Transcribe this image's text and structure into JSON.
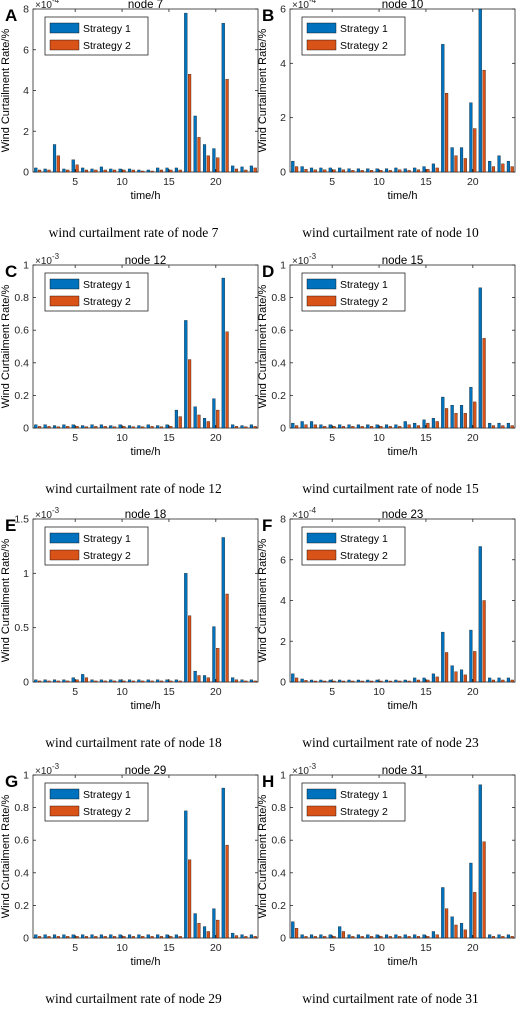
{
  "series_names": [
    "Strategy 1",
    "Strategy 2"
  ],
  "colors": {
    "s1": "#0072BD",
    "s2": "#D95319",
    "axis": "#262626"
  },
  "ylabel": "Wind Curtailment Rate/%",
  "xlabel": "time/h",
  "xticks": [
    5,
    10,
    15,
    20
  ],
  "chart_data": [
    {
      "type": "bar",
      "panel_letter": "A",
      "title": "node 7",
      "caption": "wind curtailment rate of node 7",
      "exponent": "×10^-4",
      "x": [
        1,
        2,
        3,
        4,
        5,
        6,
        7,
        8,
        9,
        10,
        11,
        12,
        13,
        14,
        15,
        16,
        17,
        18,
        19,
        20,
        21,
        22,
        23,
        24
      ],
      "xlim": [
        0.5,
        24.5
      ],
      "ylim": [
        0,
        8
      ],
      "ytick_labels": [
        "0",
        "2",
        "4",
        "6",
        "8"
      ],
      "series": [
        {
          "name": "Strategy 1",
          "values": [
            0.2,
            0.15,
            1.35,
            0.15,
            0.6,
            0.2,
            0.15,
            0.25,
            0.15,
            0.15,
            0.15,
            0.1,
            0.1,
            0.2,
            0.2,
            0.2,
            7.8,
            2.75,
            1.35,
            1.15,
            7.3,
            0.3,
            0.25,
            0.3
          ]
        },
        {
          "name": "Strategy 2",
          "values": [
            0.1,
            0.1,
            0.8,
            0.1,
            0.35,
            0.1,
            0.1,
            0.1,
            0.1,
            0.1,
            0.1,
            0.05,
            0.05,
            0.1,
            0.1,
            0.1,
            4.8,
            1.7,
            0.8,
            0.7,
            4.55,
            0.15,
            0.1,
            0.2
          ]
        }
      ]
    },
    {
      "type": "bar",
      "panel_letter": "B",
      "title": "node 10",
      "caption": "wind curtailment rate of node 10",
      "exponent": "×10^-4",
      "x": [
        1,
        2,
        3,
        4,
        5,
        6,
        7,
        8,
        9,
        10,
        11,
        12,
        13,
        14,
        15,
        16,
        17,
        18,
        19,
        20,
        21,
        22,
        23,
        24
      ],
      "xlim": [
        0.5,
        24.5
      ],
      "ylim": [
        0,
        6
      ],
      "ytick_labels": [
        "0",
        "2",
        "4",
        "6"
      ],
      "series": [
        {
          "name": "Strategy 1",
          "values": [
            0.4,
            0.2,
            0.15,
            0.15,
            0.15,
            0.15,
            0.12,
            0.12,
            0.12,
            0.12,
            0.12,
            0.15,
            0.12,
            0.15,
            0.2,
            0.3,
            4.7,
            0.9,
            0.9,
            2.55,
            6.0,
            0.4,
            0.6,
            0.4
          ]
        },
        {
          "name": "Strategy 2",
          "values": [
            0.2,
            0.1,
            0.08,
            0.08,
            0.08,
            0.08,
            0.06,
            0.06,
            0.06,
            0.06,
            0.06,
            0.08,
            0.06,
            0.08,
            0.1,
            0.15,
            2.9,
            0.6,
            0.5,
            1.6,
            3.75,
            0.2,
            0.3,
            0.2
          ]
        }
      ]
    },
    {
      "type": "bar",
      "panel_letter": "C",
      "title": "node 12",
      "caption": "wind curtailment rate of node 12",
      "exponent": "×10^-3",
      "x": [
        1,
        2,
        3,
        4,
        5,
        6,
        7,
        8,
        9,
        10,
        11,
        12,
        13,
        14,
        15,
        16,
        17,
        18,
        19,
        20,
        21,
        22,
        23,
        24
      ],
      "xlim": [
        0.5,
        24.5
      ],
      "ylim": [
        0,
        1
      ],
      "ytick_labels": [
        "0",
        "0.2",
        "0.4",
        "0.6",
        "0.8",
        "1"
      ],
      "series": [
        {
          "name": "Strategy 1",
          "values": [
            0.02,
            0.02,
            0.015,
            0.02,
            0.02,
            0.015,
            0.02,
            0.02,
            0.015,
            0.02,
            0.015,
            0.015,
            0.02,
            0.015,
            0.02,
            0.11,
            0.66,
            0.13,
            0.06,
            0.18,
            0.92,
            0.02,
            0.015,
            0.02
          ]
        },
        {
          "name": "Strategy 2",
          "values": [
            0.01,
            0.01,
            0.008,
            0.01,
            0.01,
            0.008,
            0.01,
            0.01,
            0.008,
            0.01,
            0.008,
            0.008,
            0.01,
            0.008,
            0.01,
            0.07,
            0.42,
            0.08,
            0.04,
            0.11,
            0.59,
            0.01,
            0.008,
            0.01
          ]
        }
      ]
    },
    {
      "type": "bar",
      "panel_letter": "D",
      "title": "node 15",
      "caption": "wind curtailment rate of node 15",
      "exponent": "×10^-3",
      "x": [
        1,
        2,
        3,
        4,
        5,
        6,
        7,
        8,
        9,
        10,
        11,
        12,
        13,
        14,
        15,
        16,
        17,
        18,
        19,
        20,
        21,
        22,
        23,
        24
      ],
      "xlim": [
        0.5,
        24.5
      ],
      "ylim": [
        0,
        1
      ],
      "ytick_labels": [
        "0",
        "0.2",
        "0.4",
        "0.6",
        "0.8",
        "1"
      ],
      "series": [
        {
          "name": "Strategy 1",
          "values": [
            0.03,
            0.04,
            0.04,
            0.02,
            0.02,
            0.02,
            0.02,
            0.02,
            0.02,
            0.02,
            0.02,
            0.02,
            0.04,
            0.03,
            0.05,
            0.06,
            0.19,
            0.14,
            0.14,
            0.25,
            0.86,
            0.03,
            0.03,
            0.03
          ]
        },
        {
          "name": "Strategy 2",
          "values": [
            0.015,
            0.02,
            0.02,
            0.01,
            0.01,
            0.01,
            0.01,
            0.01,
            0.01,
            0.01,
            0.01,
            0.01,
            0.02,
            0.015,
            0.03,
            0.04,
            0.12,
            0.09,
            0.09,
            0.16,
            0.55,
            0.015,
            0.015,
            0.015
          ]
        }
      ]
    },
    {
      "type": "bar",
      "panel_letter": "E",
      "title": "node 18",
      "caption": "wind curtailment rate of node 18",
      "exponent": "×10^-3",
      "x": [
        1,
        2,
        3,
        4,
        5,
        6,
        7,
        8,
        9,
        10,
        11,
        12,
        13,
        14,
        15,
        16,
        17,
        18,
        19,
        20,
        21,
        22,
        23,
        24
      ],
      "xlim": [
        0.5,
        24.5
      ],
      "ylim": [
        0,
        1.5
      ],
      "ytick_labels": [
        "0",
        "0.5",
        "1",
        "1.5"
      ],
      "series": [
        {
          "name": "Strategy 1",
          "values": [
            0.02,
            0.02,
            0.02,
            0.02,
            0.04,
            0.07,
            0.02,
            0.02,
            0.02,
            0.02,
            0.02,
            0.02,
            0.02,
            0.02,
            0.02,
            0.02,
            1.0,
            0.1,
            0.06,
            0.51,
            1.33,
            0.04,
            0.02,
            0.02
          ]
        },
        {
          "name": "Strategy 2",
          "values": [
            0.01,
            0.01,
            0.01,
            0.01,
            0.02,
            0.04,
            0.01,
            0.01,
            0.01,
            0.01,
            0.01,
            0.01,
            0.01,
            0.01,
            0.01,
            0.01,
            0.61,
            0.06,
            0.04,
            0.31,
            0.81,
            0.02,
            0.01,
            0.01
          ]
        }
      ]
    },
    {
      "type": "bar",
      "panel_letter": "F",
      "title": "node 23",
      "caption": "wind curtailment rate of node 23",
      "exponent": "×10^-4",
      "x": [
        1,
        2,
        3,
        4,
        5,
        6,
        7,
        8,
        9,
        10,
        11,
        12,
        13,
        14,
        15,
        16,
        17,
        18,
        19,
        20,
        21,
        22,
        23,
        24
      ],
      "xlim": [
        0.5,
        24.5
      ],
      "ylim": [
        0,
        8
      ],
      "ytick_labels": [
        "0",
        "2",
        "4",
        "6",
        "8"
      ],
      "series": [
        {
          "name": "Strategy 1",
          "values": [
            0.4,
            0.15,
            0.1,
            0.1,
            0.1,
            0.1,
            0.1,
            0.1,
            0.1,
            0.1,
            0.1,
            0.1,
            0.1,
            0.2,
            0.2,
            0.4,
            2.45,
            0.8,
            0.6,
            2.55,
            6.65,
            0.2,
            0.2,
            0.2
          ]
        },
        {
          "name": "Strategy 2",
          "values": [
            0.2,
            0.08,
            0.05,
            0.05,
            0.05,
            0.05,
            0.05,
            0.05,
            0.05,
            0.05,
            0.05,
            0.05,
            0.05,
            0.1,
            0.1,
            0.25,
            1.45,
            0.5,
            0.35,
            1.5,
            4.0,
            0.1,
            0.1,
            0.1
          ]
        }
      ]
    },
    {
      "type": "bar",
      "panel_letter": "G",
      "title": "node 29",
      "caption": "wind curtailment rate of node 29",
      "exponent": "×10^-3",
      "x": [
        1,
        2,
        3,
        4,
        5,
        6,
        7,
        8,
        9,
        10,
        11,
        12,
        13,
        14,
        15,
        16,
        17,
        18,
        19,
        20,
        21,
        22,
        23,
        24
      ],
      "xlim": [
        0.5,
        24.5
      ],
      "ylim": [
        0,
        1
      ],
      "ytick_labels": [
        "0",
        "0.2",
        "0.4",
        "0.6",
        "0.8",
        "1"
      ],
      "series": [
        {
          "name": "Strategy 1",
          "values": [
            0.02,
            0.02,
            0.02,
            0.02,
            0.02,
            0.02,
            0.02,
            0.02,
            0.02,
            0.02,
            0.02,
            0.02,
            0.02,
            0.02,
            0.02,
            0.02,
            0.78,
            0.15,
            0.07,
            0.18,
            0.92,
            0.03,
            0.02,
            0.02
          ]
        },
        {
          "name": "Strategy 2",
          "values": [
            0.01,
            0.01,
            0.01,
            0.01,
            0.01,
            0.01,
            0.01,
            0.01,
            0.01,
            0.01,
            0.01,
            0.01,
            0.01,
            0.01,
            0.01,
            0.01,
            0.48,
            0.09,
            0.04,
            0.11,
            0.57,
            0.015,
            0.01,
            0.01
          ]
        }
      ]
    },
    {
      "type": "bar",
      "panel_letter": "H",
      "title": "node 31",
      "caption": "wind curtailment rate of node 31",
      "exponent": "×10^-3",
      "x": [
        1,
        2,
        3,
        4,
        5,
        6,
        7,
        8,
        9,
        10,
        11,
        12,
        13,
        14,
        15,
        16,
        17,
        18,
        19,
        20,
        21,
        22,
        23,
        24
      ],
      "xlim": [
        0.5,
        24.5
      ],
      "ylim": [
        0,
        1
      ],
      "ytick_labels": [
        "0",
        "0.2",
        "0.4",
        "0.6",
        "0.8",
        "1"
      ],
      "series": [
        {
          "name": "Strategy 1",
          "values": [
            0.1,
            0.02,
            0.02,
            0.02,
            0.02,
            0.07,
            0.02,
            0.02,
            0.02,
            0.02,
            0.02,
            0.02,
            0.02,
            0.02,
            0.02,
            0.04,
            0.31,
            0.13,
            0.09,
            0.46,
            0.94,
            0.02,
            0.02,
            0.02
          ]
        },
        {
          "name": "Strategy 2",
          "values": [
            0.06,
            0.01,
            0.01,
            0.01,
            0.01,
            0.04,
            0.01,
            0.01,
            0.01,
            0.01,
            0.01,
            0.01,
            0.01,
            0.01,
            0.01,
            0.02,
            0.18,
            0.08,
            0.05,
            0.28,
            0.59,
            0.01,
            0.01,
            0.01
          ]
        }
      ]
    }
  ]
}
